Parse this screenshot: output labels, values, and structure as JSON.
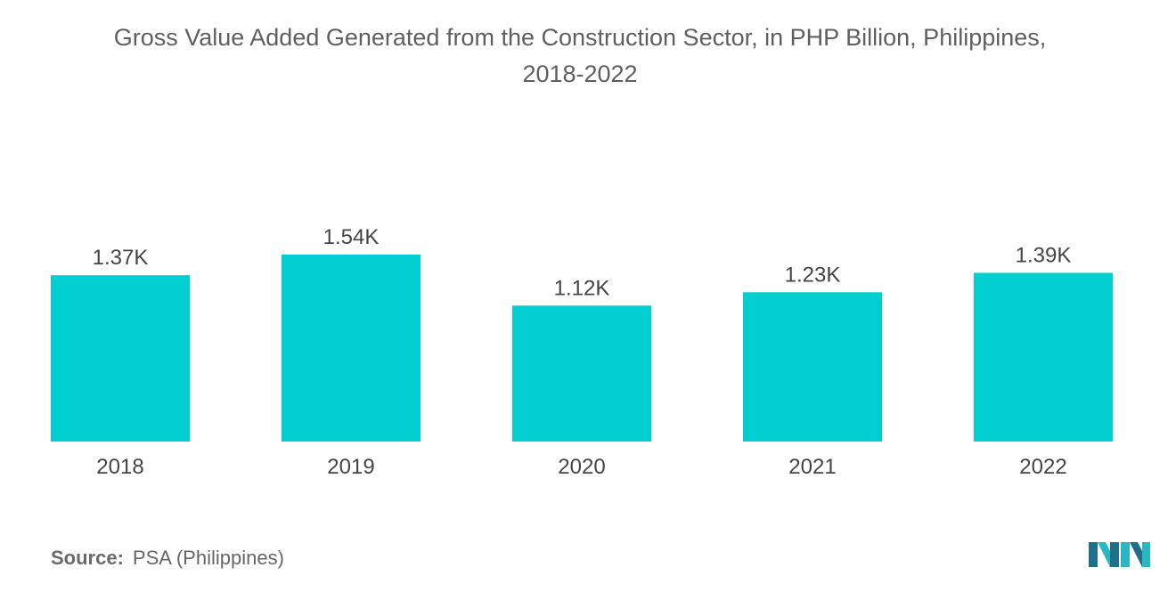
{
  "title_line1": "Gross Value Added Generated from the Construction Sector, in PHP Billion, Philippines,",
  "title_line2": "2018-2022",
  "source": {
    "label": "Source:",
    "text": "PSA (Philippines)"
  },
  "colors": {
    "bar": "#00CED1",
    "title": "#5f5f5f",
    "label": "#444444",
    "logo": "#2bb6c4"
  },
  "logo_icon": "brand-logo-icon",
  "chart_data": {
    "type": "bar",
    "categories": [
      "2018",
      "2019",
      "2020",
      "2021",
      "2022"
    ],
    "values": [
      1370,
      1540,
      1120,
      1230,
      1390
    ],
    "data_labels": [
      "1.37K",
      "1.54K",
      "1.12K",
      "1.23K",
      "1.39K"
    ],
    "title": "Gross Value Added Generated from the Construction Sector, in PHP Billion, Philippines, 2018-2022",
    "xlabel": "",
    "ylabel": "",
    "ylim": [
      0,
      1540
    ],
    "grid": false,
    "legend": "none"
  }
}
